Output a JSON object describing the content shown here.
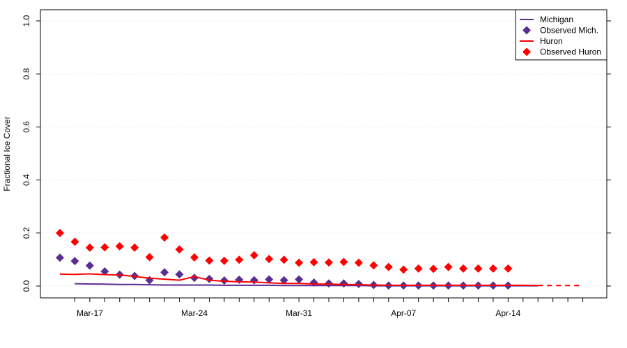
{
  "chart_data": {
    "type": "line",
    "ylabel": "Fractional Ice Cover",
    "xlabel": "",
    "title": "",
    "ylim": [
      0,
      1.0
    ],
    "yticks": [
      0.0,
      0.2,
      0.4,
      0.6,
      0.8,
      1.0
    ],
    "ytick_labels": [
      "0.0",
      "0.2",
      "0.4",
      "0.6",
      "0.8",
      "1.0"
    ],
    "xlim": [
      "2019-03-15",
      "2019-04-21"
    ],
    "xtick_labels": [
      {
        "date": "2019-03-17",
        "label": "Mar-17"
      },
      {
        "date": "2019-03-24",
        "label": "Mar-24"
      },
      {
        "date": "2019-03-31",
        "label": "Mar-31"
      },
      {
        "date": "2019-04-07",
        "label": "Apr-07"
      },
      {
        "date": "2019-04-14",
        "label": "Apr-14"
      }
    ],
    "grid": "horizontal dotted",
    "legend_position": "top-right",
    "colors": {
      "michigan": "#5a2d91",
      "huron": "#ff0000"
    },
    "series": [
      {
        "name": "Michigan",
        "kind": "line",
        "color": "#5a2d91",
        "x": [
          "2019-03-16",
          "2019-03-17",
          "2019-03-18",
          "2019-03-19",
          "2019-03-20",
          "2019-03-21",
          "2019-03-22",
          "2019-03-23",
          "2019-03-24",
          "2019-03-25",
          "2019-03-26",
          "2019-03-27",
          "2019-03-28",
          "2019-03-29",
          "2019-03-30",
          "2019-03-31",
          "2019-04-01",
          "2019-04-02",
          "2019-04-03",
          "2019-04-04",
          "2019-04-05",
          "2019-04-06",
          "2019-04-07",
          "2019-04-08",
          "2019-04-09",
          "2019-04-10",
          "2019-04-11",
          "2019-04-12",
          "2019-04-13",
          "2019-04-14",
          "2019-04-15",
          "2019-04-16"
        ],
        "y": [
          0.009,
          0.008,
          0.007,
          0.006,
          0.006,
          0.005,
          0.004,
          0.004,
          0.004,
          0.004,
          0.003,
          0.003,
          0.003,
          0.003,
          0.002,
          0.002,
          0.002,
          0.002,
          0.002,
          0.002,
          0.001,
          0.001,
          0.001,
          0.001,
          0.001,
          0.001,
          0.001,
          0.001,
          0.001,
          0.001,
          0.001,
          0.001
        ]
      },
      {
        "name": "Observed Mich.",
        "kind": "points",
        "color": "#5a2d91",
        "x": [
          "2019-03-15",
          "2019-03-16",
          "2019-03-17",
          "2019-03-18",
          "2019-03-19",
          "2019-03-20",
          "2019-03-21",
          "2019-03-22",
          "2019-03-23",
          "2019-03-24",
          "2019-03-25",
          "2019-03-26",
          "2019-03-27",
          "2019-03-28",
          "2019-03-29",
          "2019-03-30",
          "2019-03-31",
          "2019-04-01",
          "2019-04-02",
          "2019-04-03",
          "2019-04-04",
          "2019-04-05",
          "2019-04-06",
          "2019-04-07",
          "2019-04-08",
          "2019-04-09",
          "2019-04-10",
          "2019-04-11",
          "2019-04-12",
          "2019-04-13",
          "2019-04-14"
        ],
        "y": [
          0.107,
          0.094,
          0.077,
          0.055,
          0.043,
          0.038,
          0.022,
          0.052,
          0.044,
          0.031,
          0.027,
          0.021,
          0.024,
          0.022,
          0.025,
          0.022,
          0.025,
          0.013,
          0.01,
          0.01,
          0.008,
          0.004,
          0.002,
          0.002,
          0.002,
          0.002,
          0.002,
          0.002,
          0.002,
          0.002,
          0.002
        ]
      },
      {
        "name": "Huron",
        "kind": "line",
        "color": "#ff0000",
        "x": [
          "2019-03-15",
          "2019-03-16",
          "2019-03-17",
          "2019-03-18",
          "2019-03-19",
          "2019-03-20",
          "2019-03-21",
          "2019-03-22",
          "2019-03-23",
          "2019-03-24",
          "2019-03-25",
          "2019-03-26",
          "2019-03-27",
          "2019-03-28",
          "2019-03-29",
          "2019-03-30",
          "2019-03-31",
          "2019-04-01",
          "2019-04-02",
          "2019-04-03",
          "2019-04-04",
          "2019-04-05",
          "2019-04-06",
          "2019-04-07",
          "2019-04-08",
          "2019-04-09",
          "2019-04-10",
          "2019-04-11",
          "2019-04-12",
          "2019-04-13",
          "2019-04-14",
          "2019-04-15",
          "2019-04-16"
        ],
        "y": [
          0.045,
          0.044,
          0.046,
          0.043,
          0.042,
          0.036,
          0.03,
          0.026,
          0.022,
          0.036,
          0.022,
          0.018,
          0.016,
          0.015,
          0.012,
          0.01,
          0.01,
          0.008,
          0.007,
          0.006,
          0.005,
          0.004,
          0.003,
          0.003,
          0.003,
          0.003,
          0.003,
          0.003,
          0.003,
          0.003,
          0.003,
          0.003,
          0.002
        ]
      },
      {
        "name": "Huron forecast",
        "kind": "dashed-line",
        "color": "#ff0000",
        "x": [
          "2019-04-16",
          "2019-04-17",
          "2019-04-18",
          "2019-04-19"
        ],
        "y": [
          0.002,
          0.002,
          0.002,
          0.002
        ]
      },
      {
        "name": "Observed Huron",
        "kind": "points",
        "color": "#ff0000",
        "x": [
          "2019-03-15",
          "2019-03-16",
          "2019-03-17",
          "2019-03-18",
          "2019-03-19",
          "2019-03-20",
          "2019-03-21",
          "2019-03-22",
          "2019-03-23",
          "2019-03-24",
          "2019-03-25",
          "2019-03-26",
          "2019-03-27",
          "2019-03-28",
          "2019-03-29",
          "2019-03-30",
          "2019-03-31",
          "2019-04-01",
          "2019-04-02",
          "2019-04-03",
          "2019-04-04",
          "2019-04-05",
          "2019-04-06",
          "2019-04-07",
          "2019-04-08",
          "2019-04-09",
          "2019-04-10",
          "2019-04-11",
          "2019-04-12",
          "2019-04-13",
          "2019-04-14"
        ],
        "y": [
          0.2,
          0.167,
          0.145,
          0.146,
          0.15,
          0.145,
          0.109,
          0.183,
          0.138,
          0.108,
          0.096,
          0.095,
          0.099,
          0.116,
          0.102,
          0.099,
          0.088,
          0.09,
          0.089,
          0.091,
          0.088,
          0.078,
          0.072,
          0.062,
          0.066,
          0.065,
          0.072,
          0.066,
          0.066,
          0.066,
          0.066
        ]
      }
    ],
    "legend": [
      {
        "label": "Michigan",
        "symbol": "line",
        "color": "#5a2d91"
      },
      {
        "label": "Observed Mich.",
        "symbol": "diamond",
        "color": "#5a2d91"
      },
      {
        "label": "Huron",
        "symbol": "line",
        "color": "#ff0000"
      },
      {
        "label": "Observed Huron",
        "symbol": "diamond",
        "color": "#ff0000"
      }
    ]
  }
}
